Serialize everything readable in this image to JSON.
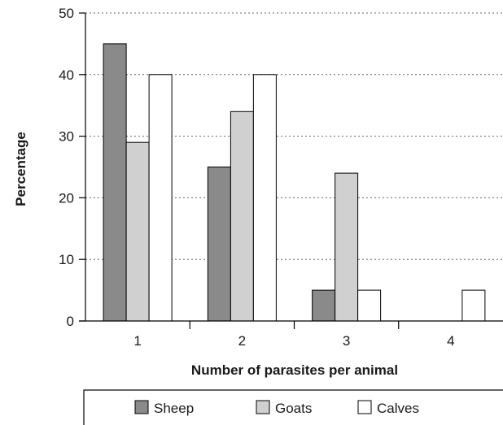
{
  "chart_data": {
    "type": "bar",
    "title": "",
    "xlabel": "Number of parasites per animal",
    "ylabel": "Percentage",
    "categories": [
      "1",
      "2",
      "3",
      "4"
    ],
    "ylim": [
      0,
      50
    ],
    "yticks": [
      "0",
      "10",
      "20",
      "30",
      "40",
      "50"
    ],
    "grid": "horizontal dotted",
    "legend": "bottom",
    "series": [
      {
        "name": "Sheep",
        "values": [
          45,
          25,
          5,
          0
        ],
        "color": "#8a8a8a"
      },
      {
        "name": "Goats",
        "values": [
          29,
          34,
          24,
          0
        ],
        "color": "#d0d0d0"
      },
      {
        "name": "Calves",
        "values": [
          40,
          40,
          5,
          5
        ],
        "color": "#ffffff"
      }
    ]
  }
}
